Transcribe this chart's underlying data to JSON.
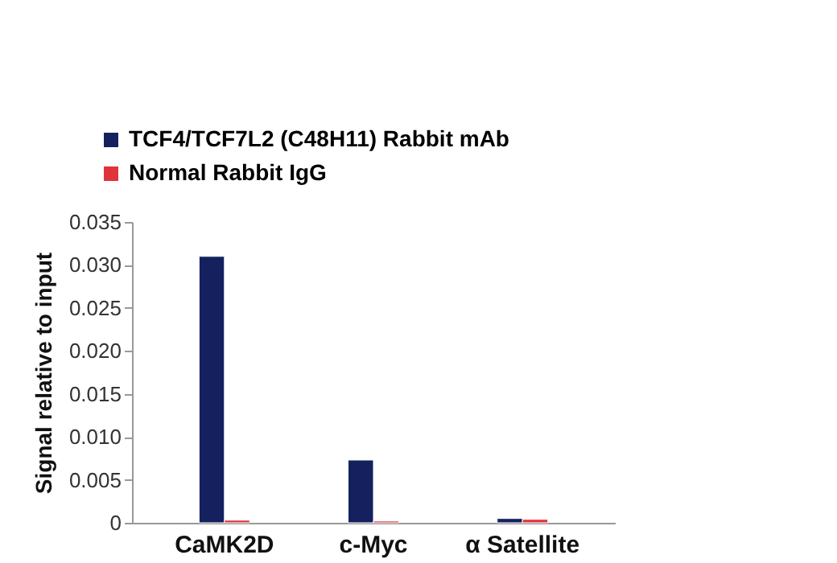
{
  "chart_data": {
    "type": "bar",
    "ylabel": "Signal relative to input",
    "categories": [
      "CaMK2D",
      "c-Myc",
      "α Satellite"
    ],
    "series": [
      {
        "name": "TCF4/TCF7L2 (C48H11) Rabbit mAb",
        "color": "#14215e",
        "values": [
          0.031,
          0.0073,
          0.0005
        ]
      },
      {
        "name": "Normal Rabbit IgG",
        "color": "#e0333a",
        "values": [
          0.0003,
          0.0002,
          0.0004
        ]
      }
    ],
    "ylim": [
      0,
      0.035
    ],
    "yticks": [
      0,
      {
        "value": 0.005,
        "label": "0.005"
      },
      {
        "value": 0.01,
        "label": "0.010"
      },
      {
        "value": 0.015,
        "label": "0.015"
      },
      {
        "value": 0.02,
        "label": "0.020"
      },
      {
        "value": 0.025,
        "label": "0.025"
      },
      {
        "value": 0.03,
        "label": "0.030"
      },
      {
        "value": 0.035,
        "label": "0.035"
      }
    ],
    "grid": false,
    "legend": "top left"
  }
}
